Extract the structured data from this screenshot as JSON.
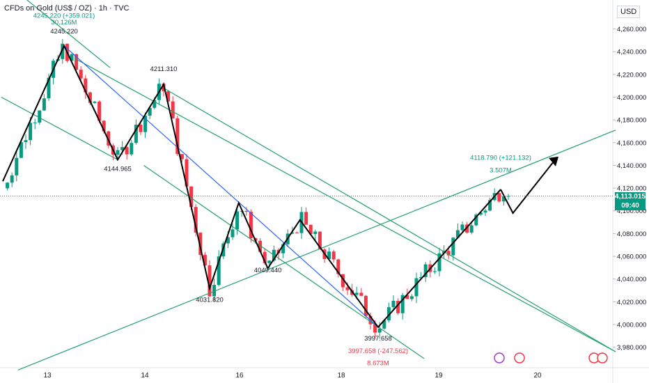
{
  "header": {
    "title": "CFDs on Gold (US$ / OZ) · 1h · TVC"
  },
  "currency": "USD",
  "last_price": {
    "value": "4,113.015",
    "countdown": "09:40"
  },
  "colors": {
    "up": "#089981",
    "down": "#f23645",
    "channel": "#22a06b",
    "zigzag": "#000000",
    "trendline": "#2962ff",
    "last_price_line": "#089981"
  },
  "chart_data": {
    "type": "candlestick",
    "title": "CFDs on Gold (US$ / OZ) · 1h · TVC",
    "y_axis": {
      "ticks": [
        3980,
        4000,
        4020,
        4040,
        4060,
        4080,
        4100,
        4120,
        4140,
        4160,
        4180,
        4200,
        4220,
        4240,
        4260
      ],
      "labels": [
        "3,980.000",
        "4,000.000",
        "4,020.000",
        "4,040.000",
        "4,060.000",
        "4,080.000",
        "4,100.000",
        "4,120.000",
        "4,140.000",
        "4,160.000",
        "4,180.000",
        "4,200.000",
        "4,220.000",
        "4,240.000",
        "4,260.000"
      ],
      "range": [
        3962,
        4272
      ]
    },
    "x_axis": {
      "labels": [
        "13",
        "14",
        "16",
        "18",
        "19",
        "20"
      ]
    },
    "key_points": [
      {
        "idx": 40,
        "price": 4245.22
      },
      {
        "idx": 75,
        "price": 4144.965
      },
      {
        "idx": 105,
        "price": 4211.31
      },
      {
        "idx": 135,
        "price": 4031.82
      },
      {
        "idx": 154,
        "price": 4107
      },
      {
        "idx": 173,
        "price": 4049.44
      },
      {
        "idx": 194,
        "price": 4092
      },
      {
        "idx": 245,
        "price": 3997.658
      },
      {
        "idx": 325,
        "price": 4118.79
      }
    ],
    "last_idx": 330,
    "projection": [
      {
        "idx": 333,
        "price": 4098
      },
      {
        "idx": 360,
        "price": 4144
      }
    ],
    "annotations": [
      {
        "text": "4245.220 (+359.021)",
        "idx": 40,
        "price": 4270,
        "color": "#089981"
      },
      {
        "text": "30.126M",
        "idx": 40,
        "price": 4264,
        "color": "#089981"
      },
      {
        "text": "4245.220",
        "idx": 40,
        "price": 4256,
        "color": "#131722"
      },
      {
        "text": "4211.310",
        "idx": 105,
        "price": 4223,
        "color": "#131722"
      },
      {
        "text": "4144.965",
        "idx": 75,
        "price": 4135,
        "color": "#131722"
      },
      {
        "text": "4031.820",
        "idx": 135,
        "price": 4020,
        "color": "#131722"
      },
      {
        "text": "4049.440",
        "idx": 173,
        "price": 4046,
        "color": "#131722"
      },
      {
        "text": "3997.658",
        "idx": 245,
        "price": 3986,
        "color": "#131722"
      },
      {
        "text": "3997.658 (-247.562)",
        "idx": 245,
        "price": 3975,
        "color": "#f23645"
      },
      {
        "text": "8.673M",
        "idx": 245,
        "price": 3964,
        "color": "#f23645"
      },
      {
        "text": "4118.790 (+121.132)",
        "idx": 325,
        "price": 4145,
        "color": "#089981"
      },
      {
        "text": "3.507M",
        "idx": 325,
        "price": 4134,
        "color": "#089981"
      }
    ],
    "channels": [
      {
        "from": {
          "idx": -1,
          "price": 4304
        },
        "to": {
          "idx": 70,
          "price": 4226
        }
      },
      {
        "from": {
          "idx": -1,
          "price": 4200
        },
        "to": {
          "idx": 75,
          "price": 4144.965
        }
      },
      {
        "from": {
          "idx": 47,
          "price": 4234
        },
        "to": {
          "idx": 400,
          "price": 3976
        }
      },
      {
        "from": {
          "idx": 105,
          "price": 4208
        },
        "to": {
          "idx": 400,
          "price": 3976
        }
      },
      {
        "from": {
          "idx": 92,
          "price": 4140
        },
        "to": {
          "idx": 275,
          "price": 3970
        }
      },
      {
        "from": {
          "idx": 10,
          "price": 3960
        },
        "to": {
          "idx": 400,
          "price": 4171
        }
      }
    ],
    "trendlines": [
      {
        "from": {
          "idx": 40,
          "price": 4245.22
        },
        "to": {
          "idx": 245,
          "price": 3997.658
        }
      },
      {
        "from": {
          "idx": 245,
          "price": 3997.658
        },
        "to": {
          "idx": 325,
          "price": 4118.79
        }
      }
    ]
  }
}
